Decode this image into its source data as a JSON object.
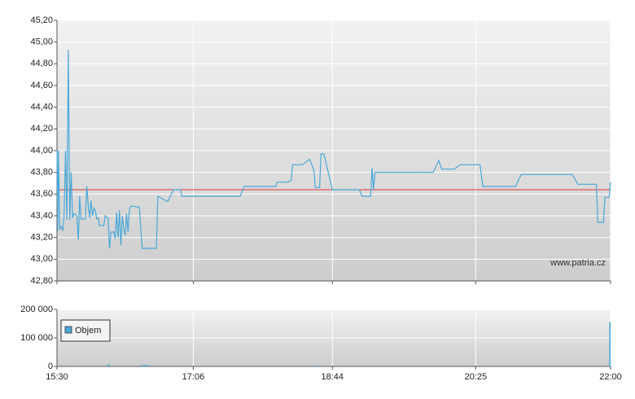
{
  "chart_data": [
    {
      "type": "line",
      "color": "#4aa8d8",
      "x": [
        930,
        930.5,
        931,
        932,
        933,
        934,
        935,
        936,
        937,
        938,
        939,
        940,
        941,
        942,
        944,
        945,
        946,
        947,
        950,
        951,
        952,
        953,
        954,
        955,
        956,
        957,
        958,
        959,
        960,
        963,
        964,
        966,
        967,
        968,
        970,
        971,
        972,
        973,
        974,
        975,
        976,
        977,
        978,
        979,
        980,
        981,
        982,
        988,
        990,
        1000,
        1001,
        1008,
        1012,
        1017,
        1018,
        1059,
        1062,
        1084,
        1085,
        1093,
        1095,
        1096,
        1103,
        1108,
        1111,
        1112,
        1115,
        1116,
        1118,
        1124,
        1143,
        1145,
        1151,
        1152,
        1153,
        1154,
        1195,
        1199,
        1201,
        1210,
        1214,
        1228,
        1230,
        1253,
        1257,
        1293,
        1297,
        1310,
        1311,
        1315,
        1316,
        1319,
        1320
      ],
      "values": [
        44.0,
        43.26,
        44.0,
        43.28,
        43.3,
        43.26,
        43.4,
        44.0,
        43.36,
        44.93,
        43.36,
        43.8,
        43.38,
        43.42,
        43.4,
        43.18,
        43.58,
        43.37,
        43.37,
        43.67,
        43.5,
        43.38,
        43.54,
        43.4,
        43.47,
        43.45,
        43.37,
        43.38,
        43.31,
        43.31,
        43.4,
        43.38,
        43.1,
        43.25,
        43.25,
        43.19,
        43.43,
        43.2,
        43.45,
        43.13,
        43.4,
        43.28,
        43.22,
        43.42,
        43.25,
        43.45,
        43.49,
        43.48,
        43.1,
        43.1,
        43.58,
        43.53,
        43.64,
        43.64,
        43.58,
        43.58,
        43.67,
        43.67,
        43.71,
        43.71,
        43.73,
        43.87,
        43.87,
        43.92,
        43.82,
        43.66,
        43.66,
        43.97,
        43.97,
        43.64,
        43.64,
        43.58,
        43.58,
        43.84,
        43.64,
        43.8,
        43.8,
        43.91,
        43.83,
        43.83,
        43.87,
        43.87,
        43.67,
        43.67,
        43.78,
        43.78,
        43.69,
        43.69,
        43.34,
        43.34,
        43.57,
        43.57,
        43.71
      ],
      "xlim": [
        930,
        1320
      ],
      "ylim": [
        42.8,
        45.2
      ],
      "yticks": [
        {
          "value": 42.8,
          "label": "42,80"
        },
        {
          "value": 43.0,
          "label": "43,00"
        },
        {
          "value": 43.2,
          "label": "43,20"
        },
        {
          "value": 43.4,
          "label": "43,40"
        },
        {
          "value": 43.6,
          "label": "43,60"
        },
        {
          "value": 43.8,
          "label": "43,80"
        },
        {
          "value": 44.0,
          "label": "44,00"
        },
        {
          "value": 44.2,
          "label": "44,20"
        },
        {
          "value": 44.4,
          "label": "44,40"
        },
        {
          "value": 44.6,
          "label": "44,60"
        },
        {
          "value": 44.8,
          "label": "44,80"
        },
        {
          "value": 45.0,
          "label": "45,00"
        },
        {
          "value": 45.2,
          "label": "45,20"
        }
      ],
      "reference_line": {
        "value": 43.64,
        "color": "#e03a3a"
      },
      "source": "www.patria.cz",
      "grid": true
    },
    {
      "type": "bar",
      "x": [
        931,
        935,
        944,
        966,
        967,
        990,
        992,
        993,
        995,
        997,
        1004,
        1016,
        1030,
        1050,
        1065,
        1080,
        1095,
        1105,
        1112,
        1114,
        1135,
        1160,
        1175,
        1190,
        1205,
        1215,
        1230,
        1245,
        1260,
        1275,
        1290,
        1305,
        1318,
        1320
      ],
      "series": [
        {
          "name": "Objem",
          "color": "#4aa8d8",
          "values": [
            2000,
            1500,
            1000,
            7000,
            5000,
            6000,
            5000,
            6000,
            4000,
            3000,
            2000,
            2000,
            1500,
            2000,
            2500,
            2000,
            2500,
            2000,
            3000,
            2500,
            2000,
            2500,
            2000,
            2000,
            1500,
            2500,
            2000,
            2500,
            2000,
            2000,
            2500,
            2000,
            3000,
            155000
          ]
        }
      ],
      "xlim": [
        930,
        1320
      ],
      "xticks": [
        {
          "value": 930,
          "label": "15:30"
        },
        {
          "value": 1026,
          "label": "17:06"
        },
        {
          "value": 1124,
          "label": "18:44"
        },
        {
          "value": 1225,
          "label": "20:25"
        },
        {
          "value": 1320,
          "label": "22:00"
        }
      ],
      "ylim": [
        0,
        200000
      ],
      "yticks": [
        0,
        {
          "value": 100000,
          "label": "100 000"
        },
        {
          "value": 200000,
          "label": "200 000"
        }
      ],
      "legend": "upper-left",
      "grid": true
    }
  ]
}
